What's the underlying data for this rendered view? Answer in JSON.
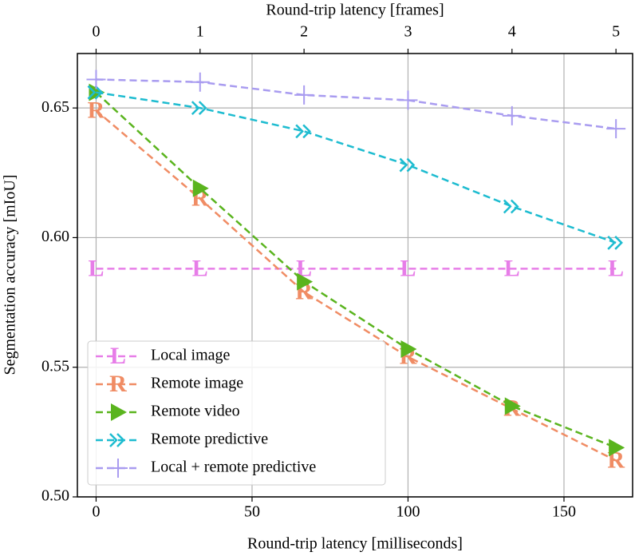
{
  "chart_data": {
    "type": "line",
    "x_label": "Round-trip latency [milliseconds]",
    "x2_label": "Round-trip latency [frames]",
    "y_label": "Segmentation accuracy [mIoU]",
    "x": [
      0,
      33.33,
      66.67,
      100,
      133.33,
      166.67
    ],
    "xlim": [
      -6,
      172
    ],
    "xticks": [
      0,
      50,
      100,
      150
    ],
    "x2lim": [
      -0.18,
      5.16
    ],
    "x2ticks": [
      0,
      1,
      2,
      3,
      4,
      5
    ],
    "ylim": [
      0.5,
      0.671
    ],
    "yticks": [
      {
        "value": 0.5,
        "label": "0.50"
      },
      0.55,
      {
        "value": 0.6,
        "label": "0.60"
      },
      0.65
    ],
    "grid": true,
    "legend": "lower left",
    "series": [
      {
        "name": "Local image",
        "color": "#e77de8",
        "marker": "L",
        "values": [
          0.588,
          0.588,
          0.588,
          0.588,
          0.588,
          0.588
        ]
      },
      {
        "name": "Remote image",
        "color": "#f08c64",
        "marker": "R",
        "values": [
          0.649,
          0.615,
          0.579,
          0.554,
          0.534,
          0.514
        ]
      },
      {
        "name": "Remote video",
        "color": "#5ab41e",
        "marker": "triangle",
        "values": [
          0.656,
          0.619,
          0.583,
          0.557,
          0.535,
          0.519
        ]
      },
      {
        "name": "Remote predictive",
        "color": "#1ebcd0",
        "marker": "chevron",
        "values": [
          0.656,
          0.65,
          0.641,
          0.628,
          0.612,
          0.598
        ]
      },
      {
        "name": "Local + remote predictive",
        "color": "#a99cf0",
        "marker": "plus",
        "values": [
          0.661,
          0.66,
          0.655,
          0.653,
          0.647,
          0.642
        ]
      }
    ]
  }
}
